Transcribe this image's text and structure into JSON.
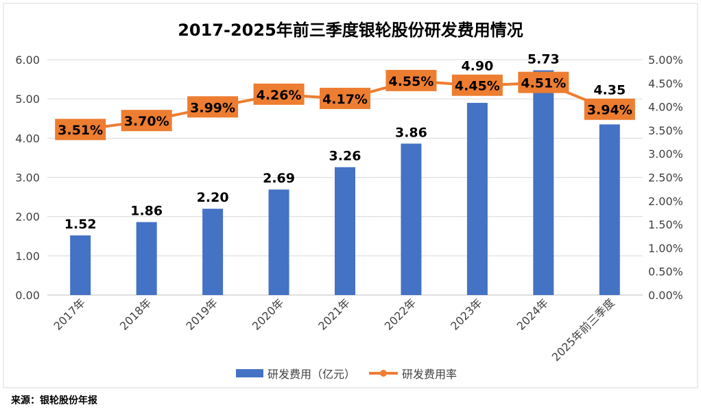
{
  "chart_data": {
    "type": "bar+line",
    "title": "2017-2025年前三季度银轮股份研发费用情况",
    "categories": [
      "2017年",
      "2018年",
      "2019年",
      "2020年",
      "2021年",
      "2022年",
      "2023年",
      "2024年",
      "2025年前三季度"
    ],
    "series": [
      {
        "name": "研发费用（亿元）",
        "type": "bar",
        "axis": "left",
        "color": "#4472C4",
        "values": [
          1.52,
          1.86,
          2.2,
          2.69,
          3.26,
          3.86,
          4.9,
          5.73,
          4.35
        ],
        "labels": [
          "1.52",
          "1.86",
          "2.20",
          "2.69",
          "3.26",
          "3.86",
          "4.90",
          "5.73",
          "4.35"
        ]
      },
      {
        "name": "研发费用率",
        "type": "line",
        "axis": "right",
        "color": "#ED7D31",
        "values": [
          3.51,
          3.7,
          3.99,
          4.26,
          4.17,
          4.55,
          4.45,
          4.51,
          3.94
        ],
        "labels": [
          "3.51%",
          "3.70%",
          "3.99%",
          "4.26%",
          "4.17%",
          "4.55%",
          "4.45%",
          "4.51%",
          "3.94%"
        ]
      }
    ],
    "y_left": {
      "range": [
        0,
        6
      ],
      "ticks": [
        "0.00",
        "1.00",
        "2.00",
        "3.00",
        "4.00",
        "5.00",
        "6.00"
      ]
    },
    "y_right": {
      "range": [
        0,
        5
      ],
      "ticks": [
        "0.00%",
        "0.50%",
        "1.00%",
        "1.50%",
        "2.00%",
        "2.50%",
        "3.00%",
        "3.50%",
        "4.00%",
        "4.50%",
        "5.00%"
      ]
    },
    "grid": true,
    "legend": "bottom"
  },
  "source": "来源：银轮股份年报"
}
